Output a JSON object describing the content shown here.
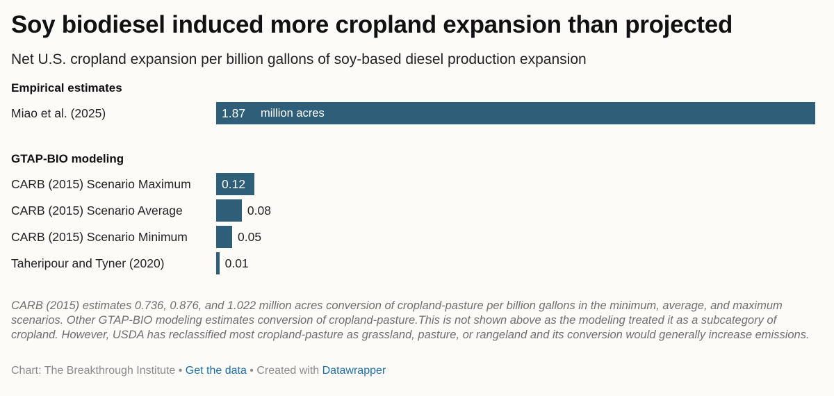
{
  "header": {
    "title": "Soy biodiesel induced more cropland expansion than projected",
    "subtitle": "Net U.S. cropland expansion per billion gallons of soy-based diesel production expansion"
  },
  "chart_data": {
    "type": "bar",
    "orientation": "horizontal",
    "title": "Soy biodiesel induced more cropland expansion than projected",
    "subtitle": "Net U.S. cropland expansion per billion gallons of soy-based diesel production expansion",
    "unit_label": "million acres",
    "xlim": [
      0,
      1.87
    ],
    "groups": [
      {
        "label": "Empirical estimates",
        "rows": [
          {
            "label": "Miao et al. (2025)",
            "value": 1.87,
            "value_label": "1.87"
          }
        ]
      },
      {
        "label": "GTAP-BIO modeling",
        "rows": [
          {
            "label": "CARB (2015) Scenario Maximum",
            "value": 0.12,
            "value_label": "0.12"
          },
          {
            "label": "CARB (2015) Scenario Average",
            "value": 0.08,
            "value_label": "0.08"
          },
          {
            "label": "CARB (2015) Scenario Minimum",
            "value": 0.05,
            "value_label": "0.05"
          },
          {
            "label": "Taheripour and Tyner (2020)",
            "value": 0.01,
            "value_label": "0.01"
          }
        ]
      }
    ],
    "bar_color": "#2e5e78"
  },
  "note": "CARB (2015) estimates 0.736, 0.876, and 1.022 million acres conversion of cropland-pasture per billion gallons in the minimum, average, and maximum scenarios. Other GTAP-BIO modeling estimates conversion of cropland-pasture.This is not shown above as the modeling treated it as a subcategory of cropland. However, USDA has reclassified most cropland-pasture as grassland, pasture, or rangeland and its conversion would generally increase emissions.",
  "footer": {
    "source": "Chart: The Breakthrough Institute",
    "sep1": " • ",
    "data_link": "Get the data",
    "sep2": " • Created with ",
    "tool_link": "Datawrapper"
  }
}
